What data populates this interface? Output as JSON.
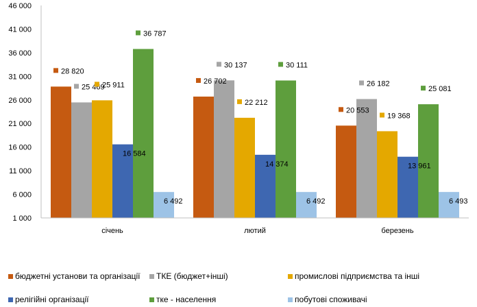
{
  "chart_data": {
    "type": "bar",
    "categories": [
      "січень",
      "лютий",
      "березень"
    ],
    "ylim": [
      1000,
      46000
    ],
    "yticks": [
      1000,
      6000,
      11000,
      16000,
      21000,
      26000,
      31000,
      36000,
      41000,
      46000
    ],
    "ytick_labels": [
      "1 000",
      "6 000",
      "11 000",
      "16 000",
      "21 000",
      "26 000",
      "31 000",
      "36 000",
      "41 000",
      "46 000"
    ],
    "grid": false,
    "legend_position": "bottom",
    "series": [
      {
        "name": "бюджетні установи та організації",
        "color": "#C55A11",
        "values": [
          28820,
          26702,
          20553
        ],
        "labels": [
          "28 820",
          "26 702",
          "20 553"
        ]
      },
      {
        "name": "ТКЕ (бюджет+інші)",
        "color": "#A5A5A5",
        "values": [
          25469,
          30137,
          26182
        ],
        "labels": [
          "25 469",
          "30 137",
          "26 182"
        ]
      },
      {
        "name": "промислові підприємства та інші",
        "color": "#E4A800",
        "values": [
          25911,
          22212,
          19368
        ],
        "labels": [
          "25 911",
          "22 212",
          "19 368"
        ]
      },
      {
        "name": "релігійні організації",
        "color": "#3E67B1",
        "values": [
          16584,
          14374,
          13961
        ],
        "labels": [
          "16 584",
          "14 374",
          "13 961"
        ]
      },
      {
        "name": "тке - населення",
        "color": "#5E9E3D",
        "values": [
          36787,
          30111,
          25081
        ],
        "labels": [
          "36 787",
          "30 111",
          "25 081"
        ]
      },
      {
        "name": "побутові споживачі",
        "color": "#9DC3E6",
        "values": [
          6492,
          6492,
          6493
        ],
        "labels": [
          "6 492",
          "6 492",
          "6 493"
        ]
      }
    ]
  }
}
